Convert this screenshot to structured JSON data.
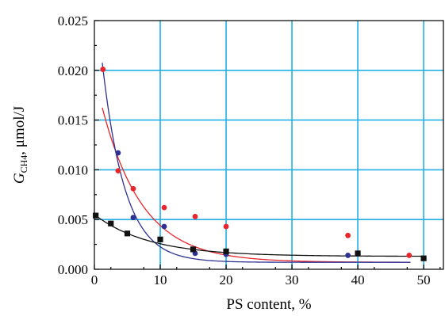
{
  "chart_data": {
    "type": "scatter",
    "title": "",
    "xlabel": "PS content, %",
    "ylabel": {
      "symbol": "G",
      "subscript": "CH4",
      "unit": ", μmol/J"
    },
    "xlim": [
      0,
      53
    ],
    "ylim": [
      0,
      0.025
    ],
    "x_ticks": [
      0,
      10,
      20,
      30,
      40,
      50
    ],
    "x_tick_labels": [
      "0",
      "10",
      "20",
      "30",
      "40",
      "50"
    ],
    "y_ticks": [
      0,
      0.005,
      0.01,
      0.015,
      0.02,
      0.025
    ],
    "y_tick_labels": [
      "0.000",
      "0.005",
      "0.010",
      "0.015",
      "0.020",
      "0.025"
    ],
    "grid": true,
    "legend": "none",
    "series": [
      {
        "color": "#e8262d",
        "marker": "circle",
        "points": [
          {
            "x": 1.3,
            "y": 0.0201
          },
          {
            "x": 3.6,
            "y": 0.0099
          },
          {
            "x": 5.9,
            "y": 0.0081
          },
          {
            "x": 10.6,
            "y": 0.0062
          },
          {
            "x": 15.3,
            "y": 0.0053
          },
          {
            "x": 20.0,
            "y": 0.0043
          },
          {
            "x": 38.5,
            "y": 0.0034
          },
          {
            "x": 47.8,
            "y": 0.0014
          }
        ],
        "fit": {
          "type": "exponential",
          "a": 0.0189,
          "k": 0.163,
          "c": 0.0007,
          "from": 1.2,
          "to": 48
        }
      },
      {
        "color": "#2e3192",
        "marker": "circle",
        "points": [
          {
            "x": 3.6,
            "y": 0.0117
          },
          {
            "x": 5.9,
            "y": 0.0052
          },
          {
            "x": 10.6,
            "y": 0.0043
          },
          {
            "x": 15.3,
            "y": 0.0016
          },
          {
            "x": 20.0,
            "y": 0.0015
          },
          {
            "x": 38.5,
            "y": 0.0014
          }
        ],
        "fit": {
          "type": "exponential",
          "a": 0.0284,
          "k": 0.29,
          "c": 0.0007,
          "from": 1.2,
          "to": 48
        }
      },
      {
        "color": "#111111",
        "marker": "square",
        "points": [
          {
            "x": 0.2,
            "y": 0.0054
          },
          {
            "x": 2.5,
            "y": 0.0046
          },
          {
            "x": 5.0,
            "y": 0.0036
          },
          {
            "x": 10.0,
            "y": 0.003
          },
          {
            "x": 15.0,
            "y": 0.002
          },
          {
            "x": 20.0,
            "y": 0.0018
          },
          {
            "x": 40.0,
            "y": 0.0016
          },
          {
            "x": 50.0,
            "y": 0.0011
          }
        ],
        "fit": {
          "type": "exponential",
          "a": 0.0042,
          "k": 0.12,
          "c": 0.0013,
          "from": 0,
          "to": 50
        }
      }
    ]
  }
}
